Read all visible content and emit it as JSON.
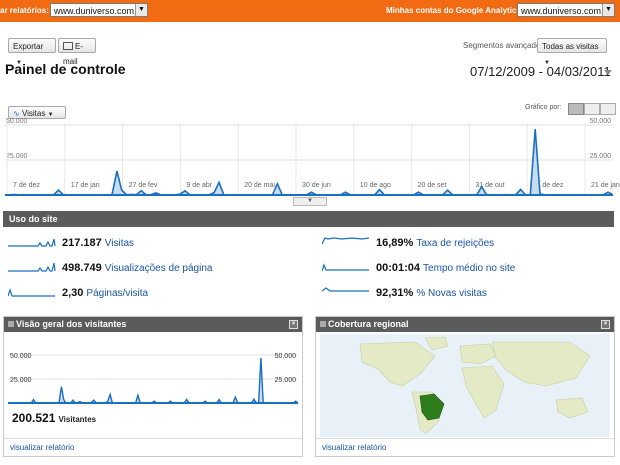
{
  "topbar": {
    "reports_label": "ar relatórios:",
    "site_select": "www.duniverso.com.br/",
    "accounts_label": "Minhas contas do Google Analytics:",
    "account_select": "www.duniverso.com.br"
  },
  "toolbar": {
    "export_label": "Exportar",
    "email_label": "E-mail",
    "segments_label": "Segmentos avançados:",
    "segments_value": "Todas as visitas"
  },
  "page": {
    "title": "Painel de controle",
    "date_range": "07/12/2009 - 04/03/2011"
  },
  "main_chart": {
    "metric_select": "Visitas",
    "graph_by_label": "Gráfico por:",
    "y_ticks": [
      "50.000",
      "25.000"
    ],
    "x_labels": [
      "7 de dez",
      "17 de jan",
      "27 de fev",
      "9 de abr",
      "20 de mai",
      "30 de jun",
      "10 de ago",
      "20 de set",
      "31 de out",
      "11 de dez",
      "21 de jan"
    ]
  },
  "chart_data": {
    "type": "area",
    "title": "",
    "ylim": [
      0,
      50000
    ],
    "x_labels": [
      "7 de dez",
      "17 de jan",
      "27 de fev",
      "9 de abr",
      "20 de mai",
      "30 de jun",
      "10 de ago",
      "20 de set",
      "31 de out",
      "11 de dez",
      "21 de jan"
    ],
    "series": [
      {
        "values": [
          150,
          150,
          300,
          150,
          150,
          150,
          150,
          150,
          150,
          150,
          150,
          3500,
          150,
          150,
          150,
          150,
          150,
          150,
          150,
          150,
          150,
          150,
          200,
          17000,
          3500,
          150,
          400,
          150,
          3000,
          150,
          200,
          1500,
          150,
          150,
          150,
          150,
          600,
          3000,
          150,
          150,
          150,
          150,
          150,
          1800,
          9000,
          150,
          150,
          150,
          150,
          150,
          150,
          150,
          150,
          150,
          150,
          150,
          8000,
          150,
          150,
          150,
          150,
          150,
          150,
          2000,
          150,
          150,
          150,
          150,
          150,
          150,
          2000,
          150,
          150,
          150,
          150,
          150,
          150,
          3800,
          150,
          150,
          150,
          150,
          150,
          150,
          150,
          2000,
          150,
          150,
          150,
          150,
          150,
          3500,
          150,
          150,
          150,
          150,
          150,
          150,
          6000,
          150,
          150,
          150,
          150,
          200,
          150,
          150,
          4000,
          150,
          150,
          47000,
          800,
          150,
          150,
          150,
          150,
          150,
          150,
          150,
          150,
          150,
          150,
          150,
          150,
          150,
          2000,
          150
        ]
      }
    ]
  },
  "usage": {
    "header": "Uso do site",
    "metrics": [
      {
        "value": "217.187",
        "label": "Visitas"
      },
      {
        "value": "498.749",
        "label": "Visualizações de página"
      },
      {
        "value": "2,30",
        "label": "Páginas/visita"
      },
      {
        "value": "16,89%",
        "label": "Taxa de rejeições"
      },
      {
        "value": "00:01:04",
        "label": "Tempo médio no site"
      },
      {
        "value": "92,31%",
        "label": "% Novas visitas"
      }
    ]
  },
  "visitors_panel": {
    "title": "Visão geral dos visitantes",
    "y_ticks": [
      "50.000",
      "25.000"
    ],
    "total": "200.521",
    "total_label": "Visitantes",
    "link": "visualizar relatório"
  },
  "regional_panel": {
    "title": "Cobertura regional",
    "link": "visualizar relatório"
  },
  "colors": {
    "accent": "#f26b13",
    "line": "#1a6fc2",
    "header": "#5b5b5b",
    "link": "#1a54a6"
  }
}
